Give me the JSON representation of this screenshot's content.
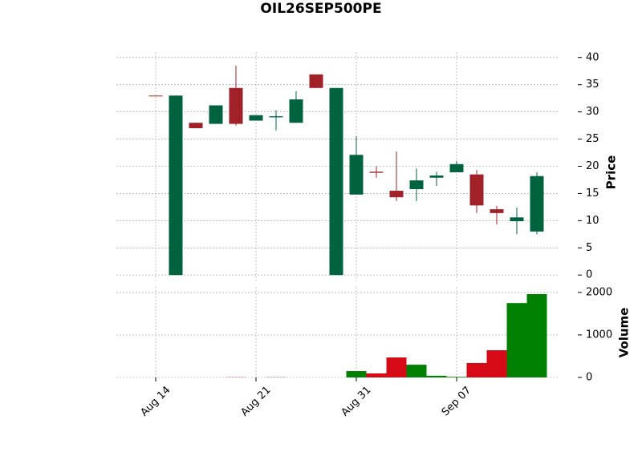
{
  "chart_data": {
    "type": "candlestick",
    "title": "OIL26SEP500PE",
    "categories": [
      "Aug 14",
      null,
      null,
      null,
      null,
      "Aug 21",
      null,
      null,
      null,
      null,
      "Aug 31",
      null,
      null,
      null,
      null,
      "Sep 07",
      null,
      null,
      null,
      null
    ],
    "open": [
      33,
      0,
      28,
      27.8,
      34.4,
      28.4,
      29.0,
      28.0,
      36.9,
      0,
      14.8,
      19.0,
      15.5,
      15.8,
      17.9,
      18.9,
      18.5,
      12.1,
      9.9,
      8.0
    ],
    "high": [
      33,
      33,
      28,
      31.2,
      38.5,
      29.4,
      30.3,
      33.8,
      36.9,
      34.4,
      25.5,
      20.0,
      22.7,
      19.6,
      19.0,
      21.0,
      19.3,
      12.7,
      12.4,
      18.9
    ],
    "low": [
      33,
      0,
      27,
      27.8,
      27.5,
      28.4,
      26.6,
      28.0,
      34.4,
      0,
      14.8,
      17.9,
      13.6,
      13.6,
      16.4,
      18.9,
      11.4,
      9.3,
      7.5,
      7.5
    ],
    "close": [
      33,
      33,
      27,
      31.2,
      27.8,
      29.4,
      29.2,
      32.3,
      34.4,
      34.4,
      22.1,
      18.8,
      14.3,
      17.4,
      18.3,
      20.4,
      12.8,
      11.4,
      10.6,
      18.2
    ],
    "volume": [
      0,
      0,
      0,
      0,
      5,
      0,
      5,
      0,
      0,
      0,
      150,
      95,
      470,
      300,
      40,
      15,
      340,
      640,
      1750,
      1960
    ],
    "up_color": "#006340",
    "down_color": "#a02128",
    "up_volume_color": "#008000",
    "down_volume_color": "#d60a16",
    "ylabel": "Price",
    "ylim": [
      -1,
      41
    ],
    "yticks": [
      0,
      5,
      10,
      15,
      20,
      25,
      30,
      35,
      40
    ],
    "y2label": "Volume",
    "y2lim": [
      0,
      2130
    ],
    "y2ticks": [
      0,
      1000,
      2000
    ],
    "grid": true
  }
}
